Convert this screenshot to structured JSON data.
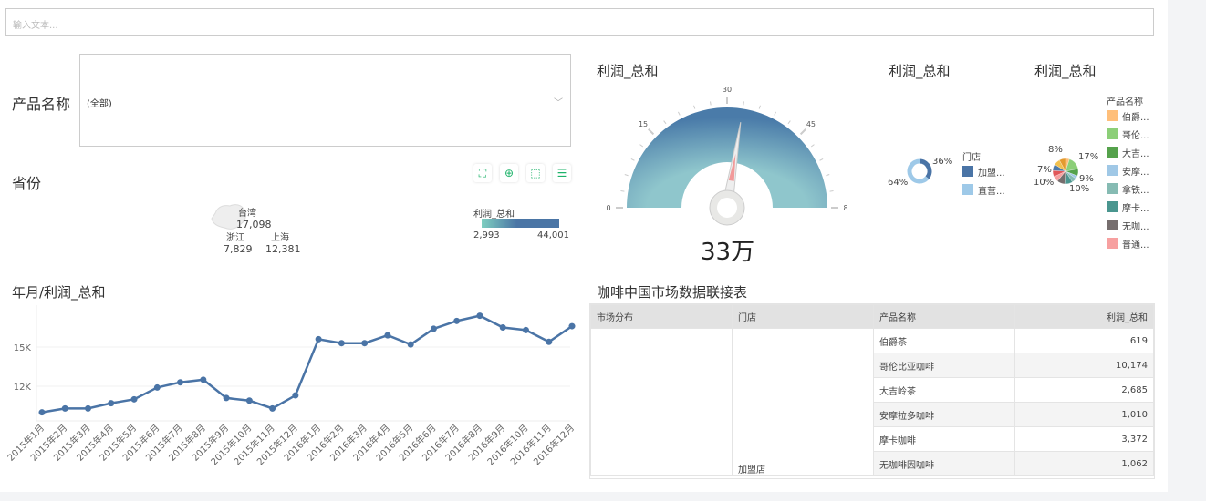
{
  "search": {
    "placeholder": "输入文本..."
  },
  "filter": {
    "label": "产品名称",
    "value": "(全部)"
  },
  "map": {
    "title": "省份",
    "legend_title": "利润_总和",
    "min": "2,993",
    "max": "44,001",
    "colors": [
      "#7fcfc0",
      "#4a75a5"
    ],
    "points": [
      {
        "name": "台湾",
        "value": "17,098"
      },
      {
        "name": "浙江",
        "value": "7,829"
      },
      {
        "name": "上海",
        "value": "12,381"
      }
    ],
    "tools": [
      "fullscreen-icon",
      "zoom-in-icon",
      "select-icon",
      "list-icon"
    ]
  },
  "gauge": {
    "title": "利润_总和",
    "value_label": "33万",
    "ticks": [
      "0",
      "15",
      "30",
      "45",
      "8"
    ],
    "value": 33,
    "max": 60
  },
  "donut": {
    "title": "利润_总和",
    "legend_title": "门店",
    "items": [
      {
        "name": "加盟...",
        "pct": "36%",
        "value": 36,
        "color": "#4a74a6"
      },
      {
        "name": "直营...",
        "pct": "64%",
        "value": 64,
        "color": "#9ec9e8"
      }
    ]
  },
  "pie": {
    "title": "利润_总和",
    "legend_title": "产品名称",
    "legend": [
      {
        "name": "伯爵...",
        "color": "#ffbf7a"
      },
      {
        "name": "哥伦...",
        "color": "#8ccf78"
      },
      {
        "name": "大吉...",
        "color": "#55a24c"
      },
      {
        "name": "安摩...",
        "color": "#a0c8e6"
      },
      {
        "name": "拿铁...",
        "color": "#86bbb3"
      },
      {
        "name": "摩卡...",
        "color": "#4a968f"
      },
      {
        "name": "无咖...",
        "color": "#766e6e"
      },
      {
        "name": "普通...",
        "color": "#f7a0a0"
      }
    ],
    "labels": [
      "8%",
      "17%",
      "9%",
      "10%",
      "10%",
      "7%"
    ]
  },
  "line": {
    "title": "年月/利润_总和",
    "color": "#4a74a6",
    "chart_data": {
      "type": "line",
      "yticks": [
        "12K",
        "15K"
      ],
      "categories": [
        "2015年1月",
        "2015年2月",
        "2015年3月",
        "2015年4月",
        "2015年5月",
        "2015年6月",
        "2015年7月",
        "2015年8月",
        "2015年9月",
        "2015年10月",
        "2015年11月",
        "2015年12月",
        "2016年1月",
        "2016年2月",
        "2016年3月",
        "2016年4月",
        "2016年5月",
        "2016年6月",
        "2016年7月",
        "2016年8月",
        "2016年9月",
        "2016年10月",
        "2016年11月",
        "2016年12月"
      ],
      "values": [
        10.0,
        10.3,
        10.3,
        10.7,
        11.0,
        11.9,
        12.3,
        12.5,
        11.1,
        10.9,
        10.3,
        11.3,
        15.6,
        15.3,
        15.3,
        15.9,
        15.2,
        16.4,
        17.0,
        17.4,
        16.5,
        16.3,
        15.4,
        16.6
      ]
    }
  },
  "table": {
    "title": "咖啡中国市场数据联接表",
    "headers": [
      "市场分布",
      "门店",
      "产品名称",
      "利润_总和"
    ],
    "store": "加盟店",
    "rows": [
      {
        "product": "伯爵茶",
        "value": "619"
      },
      {
        "product": "哥伦比亚咖啡",
        "value": "10,174"
      },
      {
        "product": "大吉岭茶",
        "value": "2,685"
      },
      {
        "product": "安摩拉多咖啡",
        "value": "1,010"
      },
      {
        "product": "摩卡咖啡",
        "value": "3,372"
      },
      {
        "product": "无咖啡因咖啡",
        "value": "1,062"
      }
    ]
  }
}
